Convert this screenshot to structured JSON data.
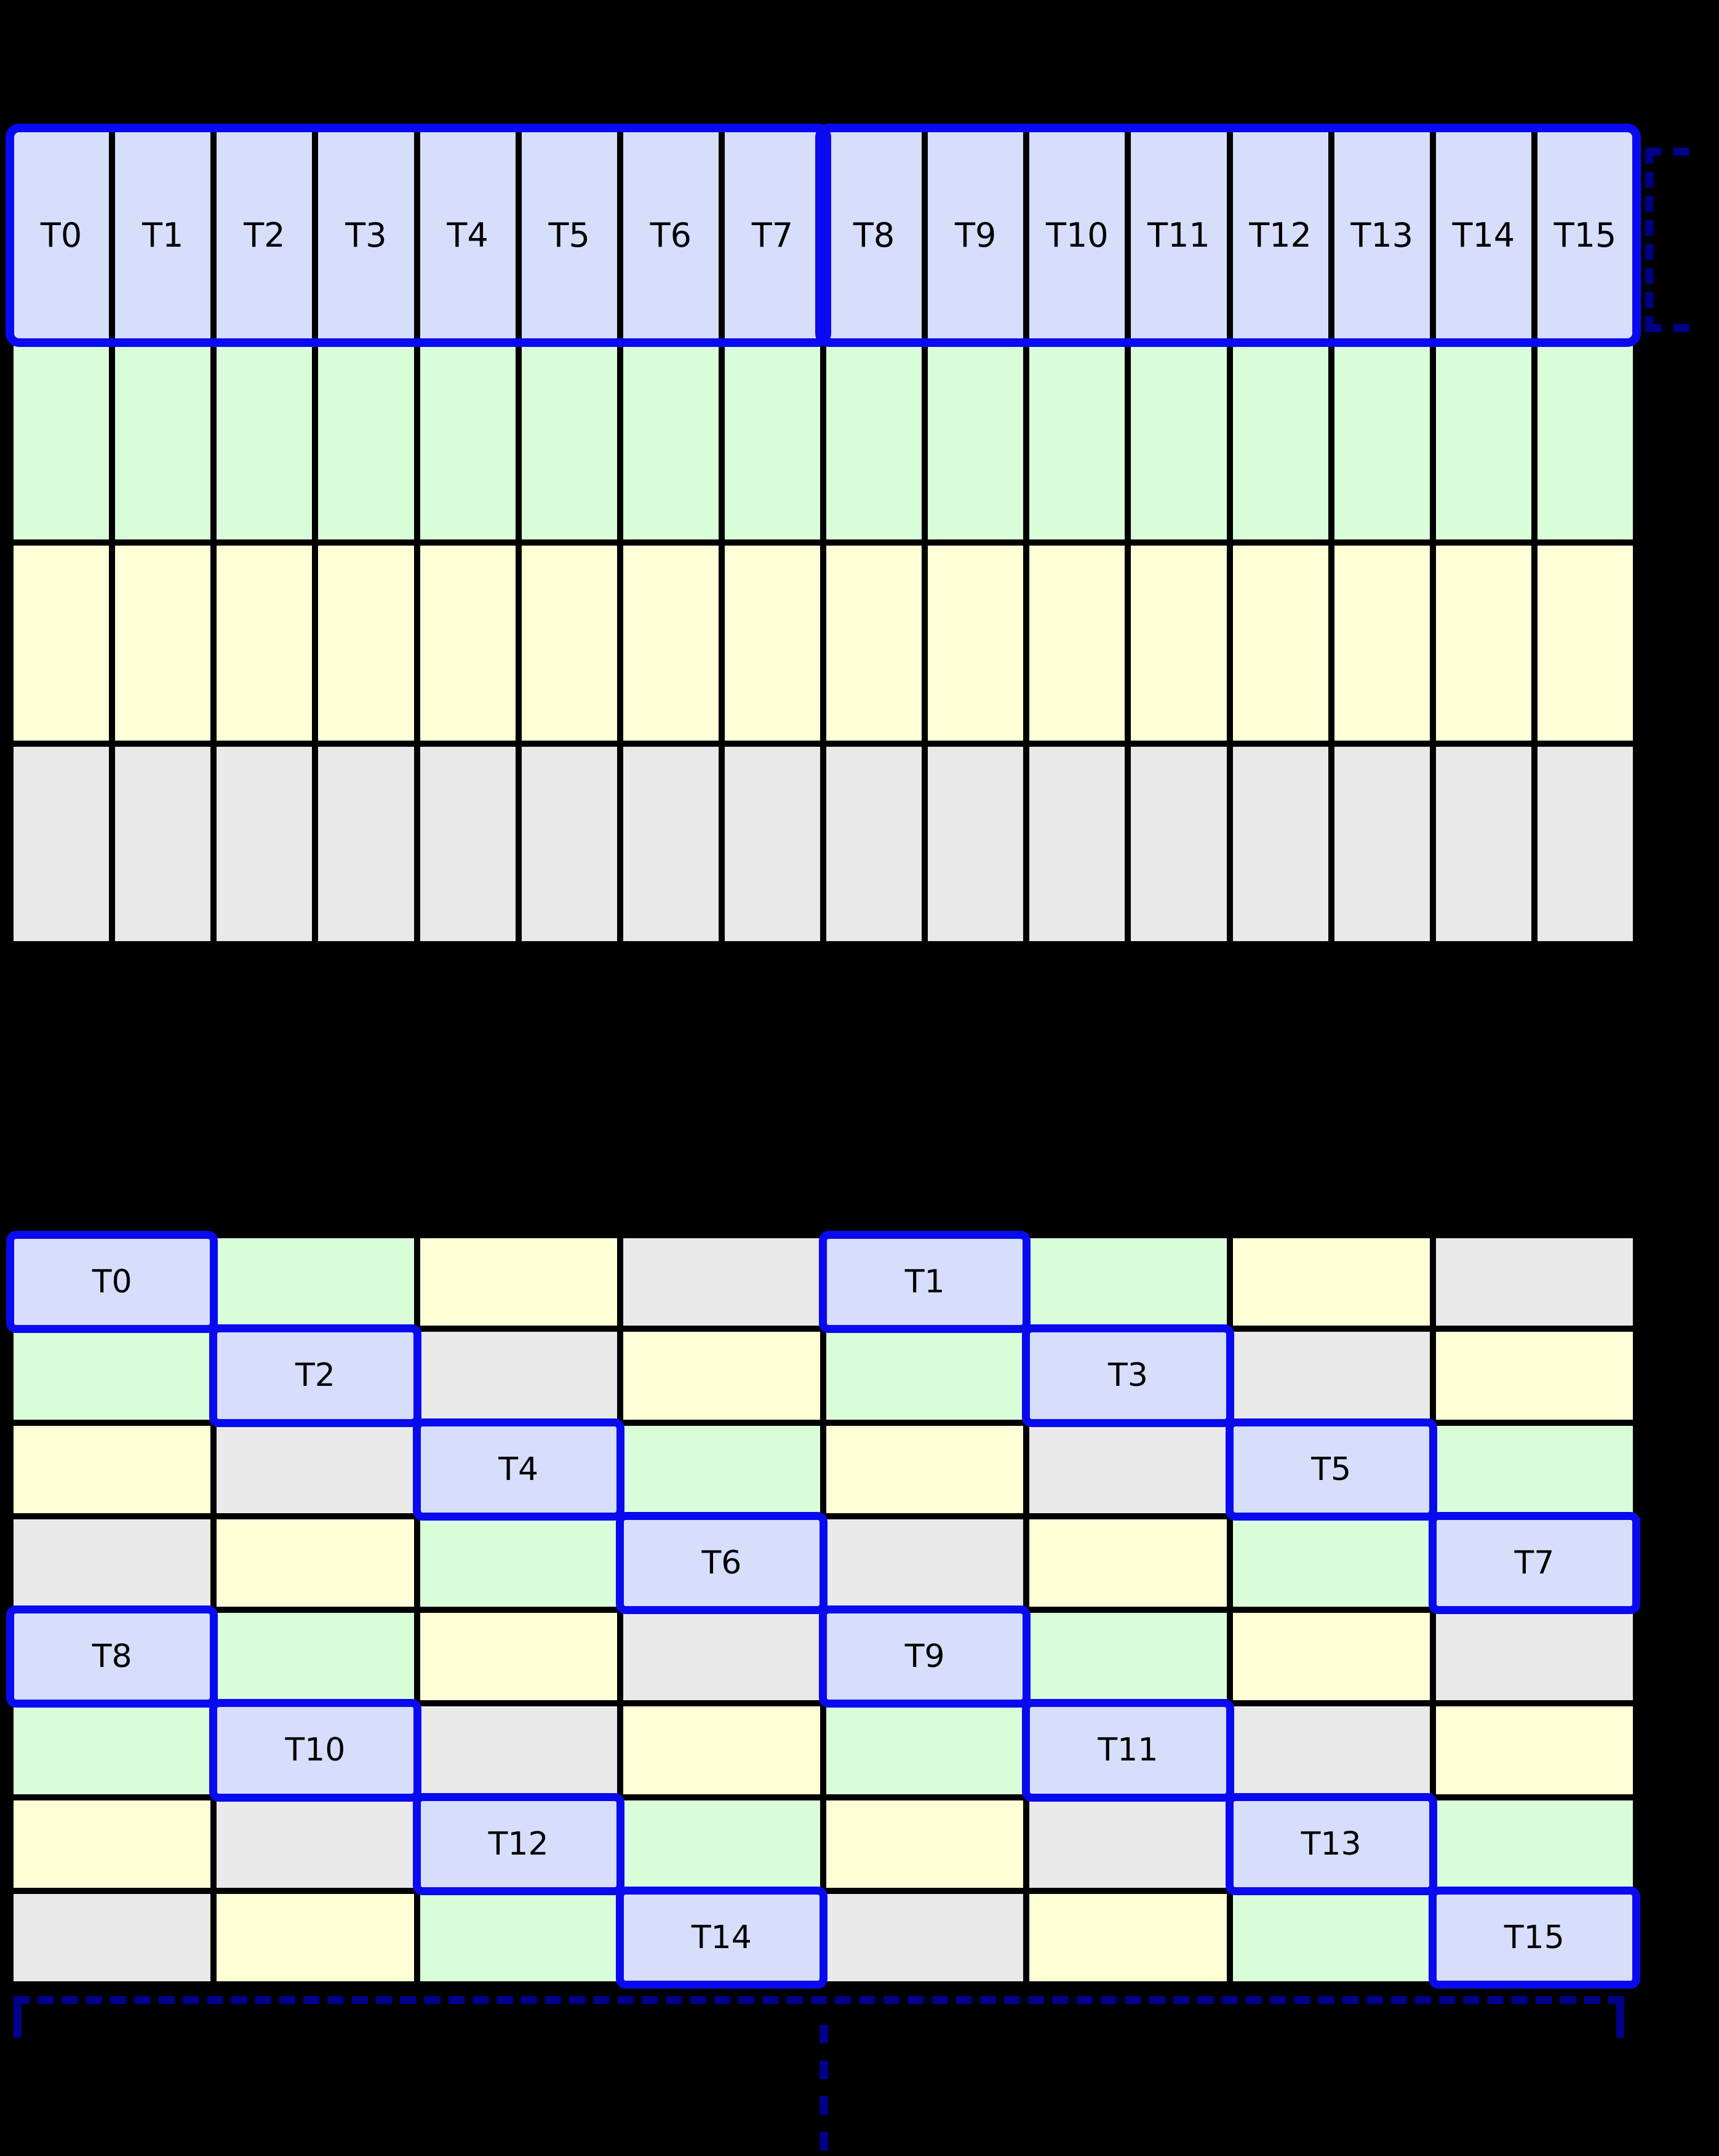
{
  "diagram": {
    "background": "#000000",
    "colors": {
      "thread_cell": "#d7defb",
      "field_green": "#d9fdd9",
      "field_yellow": "#ffffd7",
      "field_gray": "#e9e9e9",
      "highlight_border": "#0a0af0",
      "bracket_navy": "#00008b",
      "label": "#000000",
      "grid_line": "#000000"
    },
    "table1": {
      "thread_labels": [
        "T0",
        "T1",
        "T2",
        "T3",
        "T4",
        "T5",
        "T6",
        "T7",
        "T8",
        "T9",
        "T10",
        "T11",
        "T12",
        "T13",
        "T14",
        "T15"
      ],
      "field_rows": [
        "field_green",
        "field_yellow",
        "field_gray"
      ]
    },
    "table2": {
      "rows": [
        {
          "cells": [
            {
              "c": "thread",
              "label": "T0"
            },
            {
              "c": "green"
            },
            {
              "c": "yellow"
            },
            {
              "c": "gray"
            },
            {
              "c": "thread",
              "label": "T1"
            },
            {
              "c": "green"
            },
            {
              "c": "yellow"
            },
            {
              "c": "gray"
            }
          ]
        },
        {
          "cells": [
            {
              "c": "green"
            },
            {
              "c": "thread",
              "label": "T2"
            },
            {
              "c": "gray"
            },
            {
              "c": "yellow"
            },
            {
              "c": "green"
            },
            {
              "c": "thread",
              "label": "T3"
            },
            {
              "c": "gray"
            },
            {
              "c": "yellow"
            }
          ]
        },
        {
          "cells": [
            {
              "c": "yellow"
            },
            {
              "c": "gray"
            },
            {
              "c": "thread",
              "label": "T4"
            },
            {
              "c": "green"
            },
            {
              "c": "yellow"
            },
            {
              "c": "gray"
            },
            {
              "c": "thread",
              "label": "T5"
            },
            {
              "c": "green"
            }
          ]
        },
        {
          "cells": [
            {
              "c": "gray"
            },
            {
              "c": "yellow"
            },
            {
              "c": "green"
            },
            {
              "c": "thread",
              "label": "T6"
            },
            {
              "c": "gray"
            },
            {
              "c": "yellow"
            },
            {
              "c": "green"
            },
            {
              "c": "thread",
              "label": "T7"
            }
          ]
        },
        {
          "cells": [
            {
              "c": "thread",
              "label": "T8"
            },
            {
              "c": "green"
            },
            {
              "c": "yellow"
            },
            {
              "c": "gray"
            },
            {
              "c": "thread",
              "label": "T9"
            },
            {
              "c": "green"
            },
            {
              "c": "yellow"
            },
            {
              "c": "gray"
            }
          ]
        },
        {
          "cells": [
            {
              "c": "green"
            },
            {
              "c": "thread",
              "label": "T10"
            },
            {
              "c": "gray"
            },
            {
              "c": "yellow"
            },
            {
              "c": "green"
            },
            {
              "c": "thread",
              "label": "T11"
            },
            {
              "c": "gray"
            },
            {
              "c": "yellow"
            }
          ]
        },
        {
          "cells": [
            {
              "c": "yellow"
            },
            {
              "c": "gray"
            },
            {
              "c": "thread",
              "label": "T12"
            },
            {
              "c": "green"
            },
            {
              "c": "yellow"
            },
            {
              "c": "gray"
            },
            {
              "c": "thread",
              "label": "T13"
            },
            {
              "c": "green"
            }
          ]
        },
        {
          "cells": [
            {
              "c": "gray"
            },
            {
              "c": "yellow"
            },
            {
              "c": "green"
            },
            {
              "c": "thread",
              "label": "T14"
            },
            {
              "c": "gray"
            },
            {
              "c": "yellow"
            },
            {
              "c": "green"
            },
            {
              "c": "thread",
              "label": "T15"
            }
          ]
        }
      ]
    }
  }
}
